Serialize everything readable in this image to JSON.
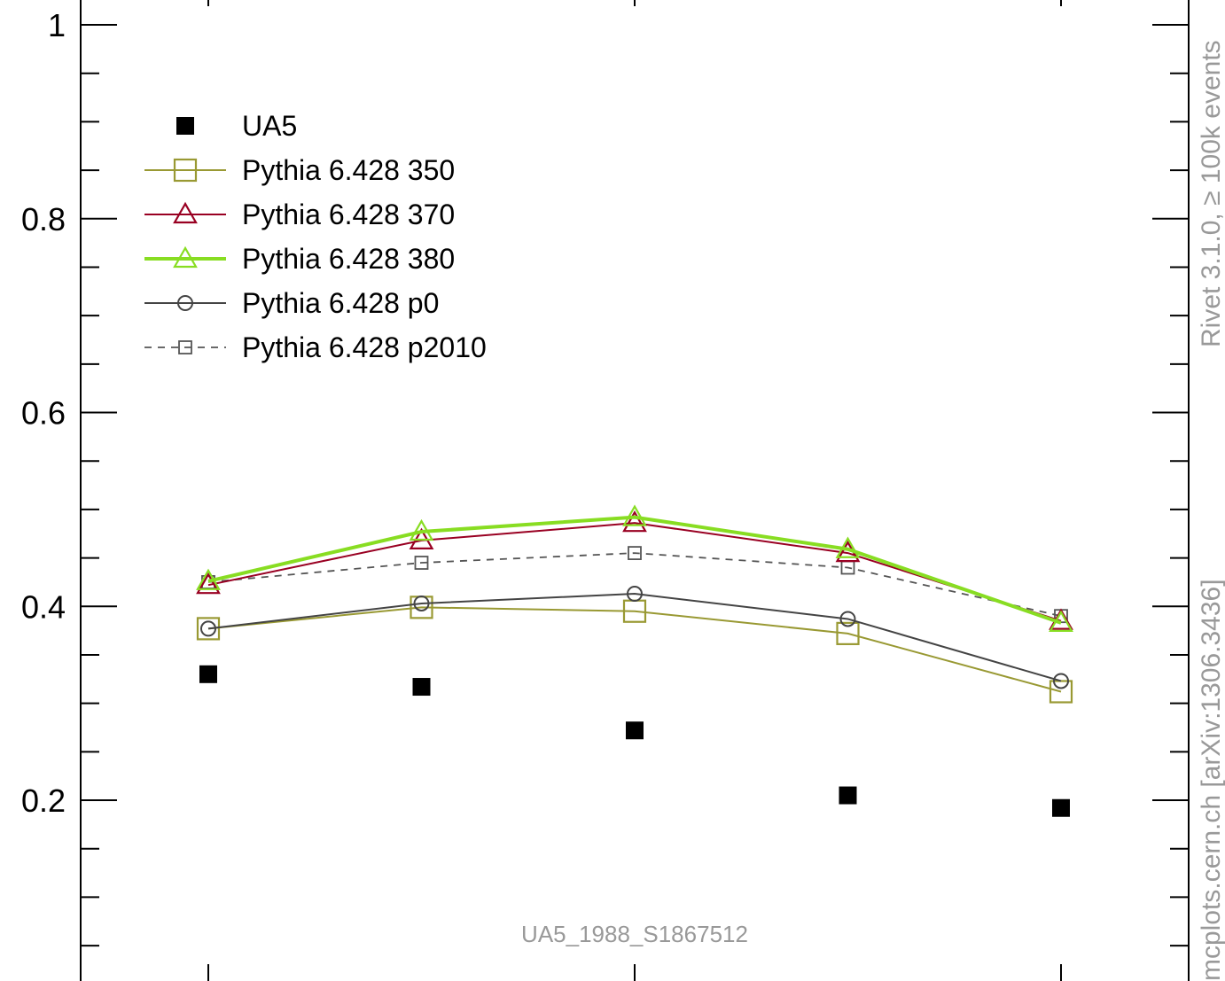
{
  "chart_data": {
    "type": "scatter",
    "x": [
      1,
      2,
      3,
      4,
      5
    ],
    "ylim": [
      0.0,
      1.05
    ],
    "y_ticks": [
      "0.2",
      "0.4",
      "0.6",
      "0.8",
      "1"
    ],
    "legend_position": "top-left",
    "grid": false,
    "series": [
      {
        "name": "UA5",
        "style": "data",
        "marker": "filled-square",
        "color": "#000000",
        "values": [
          0.33,
          0.317,
          0.272,
          0.205,
          0.192
        ]
      },
      {
        "name": "Pythia 6.428 350",
        "style": "line",
        "marker": "open-square",
        "color": "#999933",
        "values": [
          0.377,
          0.399,
          0.395,
          0.372,
          0.312
        ]
      },
      {
        "name": "Pythia 6.428 370",
        "style": "line",
        "marker": "open-triangle",
        "color": "#990022",
        "values": [
          0.422,
          0.468,
          0.486,
          0.455,
          0.385
        ]
      },
      {
        "name": "Pythia 6.428 380",
        "style": "thick-line",
        "marker": "open-triangle",
        "color": "#88dd22",
        "values": [
          0.426,
          0.477,
          0.492,
          0.459,
          0.383
        ]
      },
      {
        "name": "Pythia 6.428 p0",
        "style": "line",
        "marker": "open-circle",
        "color": "#444444",
        "values": [
          0.377,
          0.403,
          0.413,
          0.387,
          0.323
        ]
      },
      {
        "name": "Pythia 6.428 p2010",
        "style": "dashed-line",
        "marker": "small-open-square",
        "color": "#555555",
        "values": [
          0.425,
          0.445,
          0.455,
          0.44,
          0.39
        ]
      }
    ],
    "annotation": "UA5_1988_S1867512"
  },
  "side_labels": {
    "rivet": "Rivet 3.1.0, ≥ 100k events",
    "mcplots": "mcplots.cern.ch [arXiv:1306.3436]"
  }
}
